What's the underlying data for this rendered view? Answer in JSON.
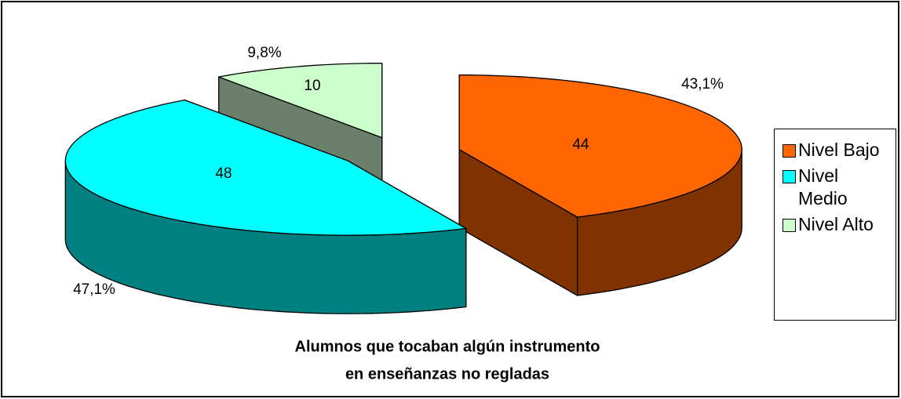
{
  "chart_data": {
    "type": "pie3d",
    "title": [
      "Alumnos que tocaban algún instrumento",
      "en enseñanzas no regladas"
    ],
    "categories": [
      "Nivel Bajo",
      "Nivel Medio",
      "Nivel Alto"
    ],
    "values": [
      44,
      48,
      10
    ],
    "percentages": [
      {
        "value": 43.1,
        "label": "43,1%"
      },
      {
        "value": 47.1,
        "label": "47,1%"
      },
      {
        "value": 9.8,
        "label": "9,8%"
      }
    ],
    "colors": [
      "#ff6600",
      "#00ffff",
      "#ccffcc"
    ],
    "side_colors": [
      "#803300",
      "#008080",
      "#6b806b"
    ],
    "legend": "right"
  }
}
